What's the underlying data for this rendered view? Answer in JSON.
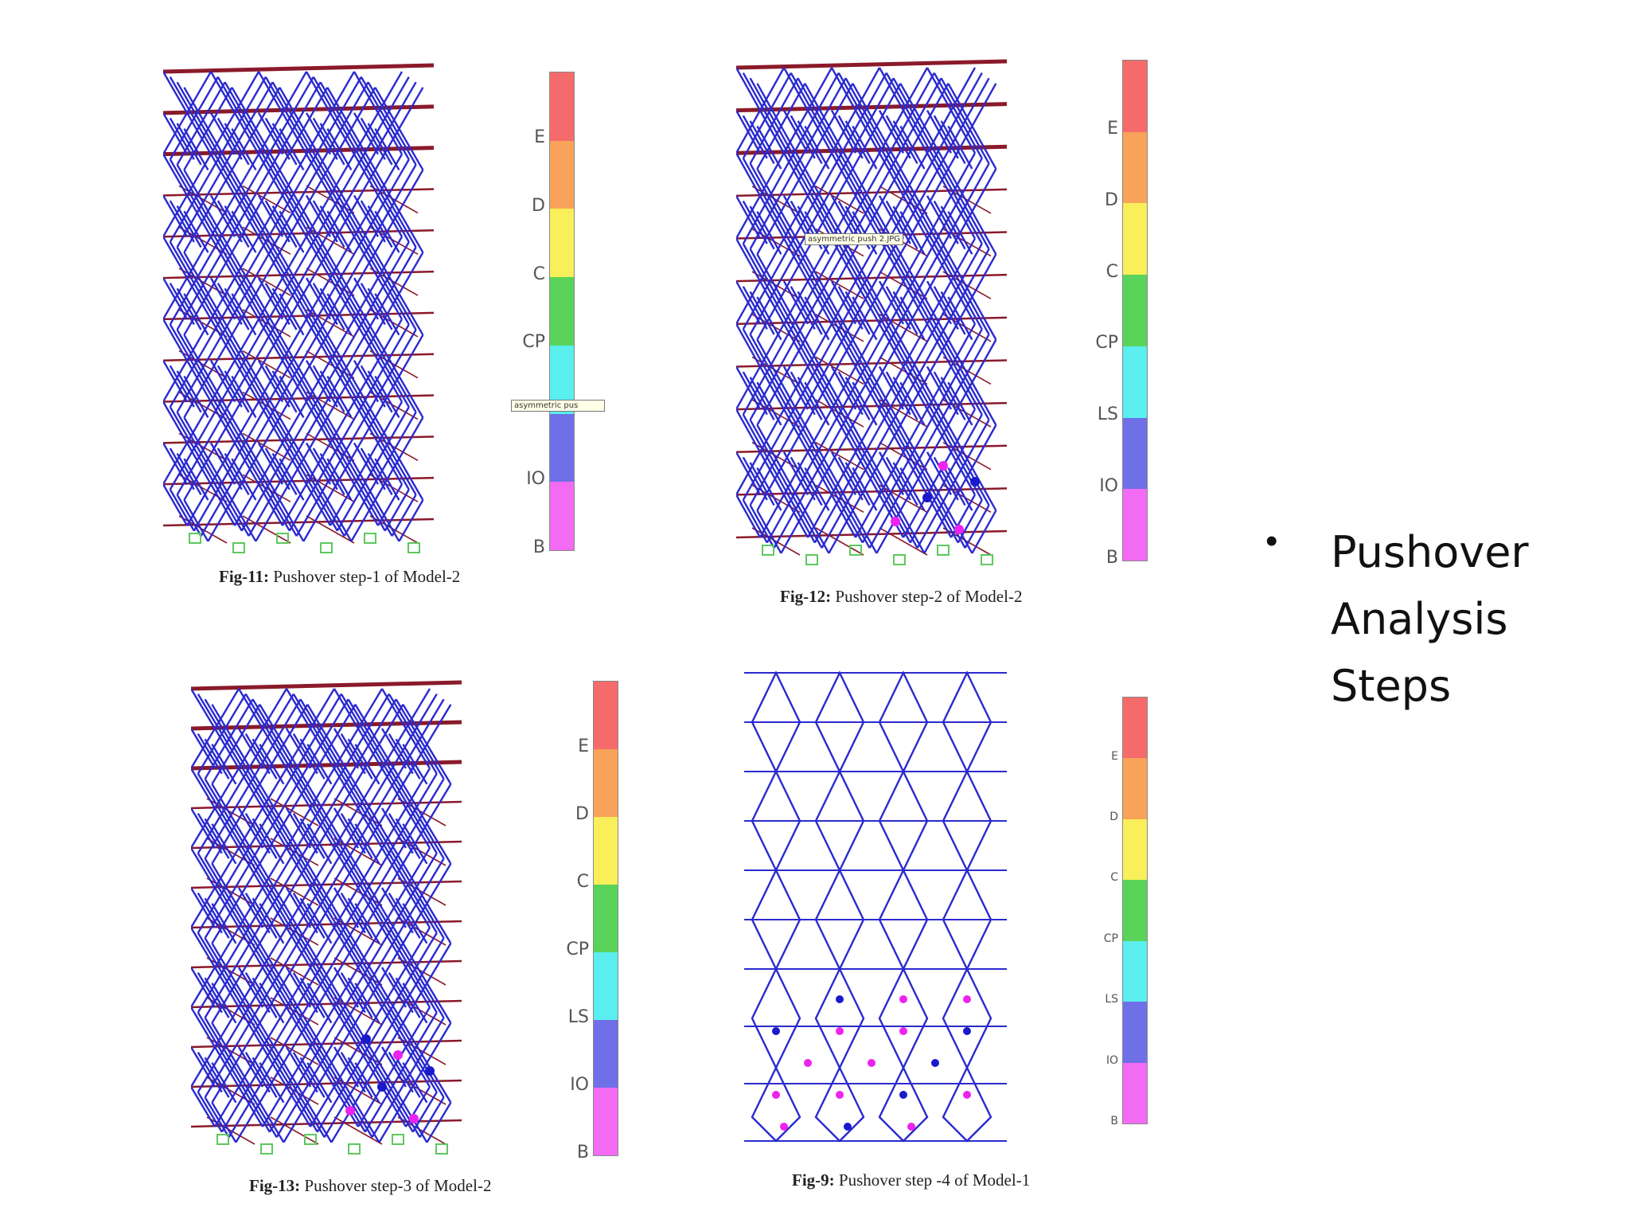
{
  "slide": {
    "bullet_glyph": "•",
    "bullet_lines": [
      "Pushover",
      "Analysis",
      "Steps"
    ]
  },
  "figures": [
    {
      "id": "fig11",
      "caption_bold": "Fig-11:",
      "caption_rest": " Pushover step-1 of Model-2",
      "tooltip": "asymmetric pus",
      "legend_labels": [
        "E",
        "D",
        "C",
        "CP",
        "",
        "IO",
        "B"
      ]
    },
    {
      "id": "fig12",
      "caption_bold": "Fig-12:",
      "caption_rest": " Pushover step-2 of Model-2",
      "tooltip": "asymmetric push 2.JPG",
      "legend_labels": [
        "E",
        "D",
        "C",
        "CP",
        "LS",
        "IO",
        "B"
      ]
    },
    {
      "id": "fig13",
      "caption_bold": "Fig-13:",
      "caption_rest": " Pushover step-3 of Model-2",
      "legend_labels": [
        "E",
        "D",
        "C",
        "CP",
        "LS",
        "IO",
        "B"
      ]
    },
    {
      "id": "fig9",
      "caption_bold": "Fig-9:",
      "caption_rest": " Pushover step -4 of Model-1",
      "legend_labels": [
        "E",
        "D",
        "C",
        "CP",
        "LS",
        "IO",
        "B"
      ]
    }
  ],
  "legend_colors": [
    "#f56b6b",
    "#f9a25a",
    "#f9ef5a",
    "#5ad35a",
    "#5aeeee",
    "#6f6fe8",
    "#f36bf3"
  ],
  "colors": {
    "frame_blue": "#2a2ad0",
    "slab_red": "#8a1a2a",
    "hinge_magenta": "#ee22ee",
    "hinge_blue": "#1a1acc",
    "support_green": "#5ec85e"
  }
}
